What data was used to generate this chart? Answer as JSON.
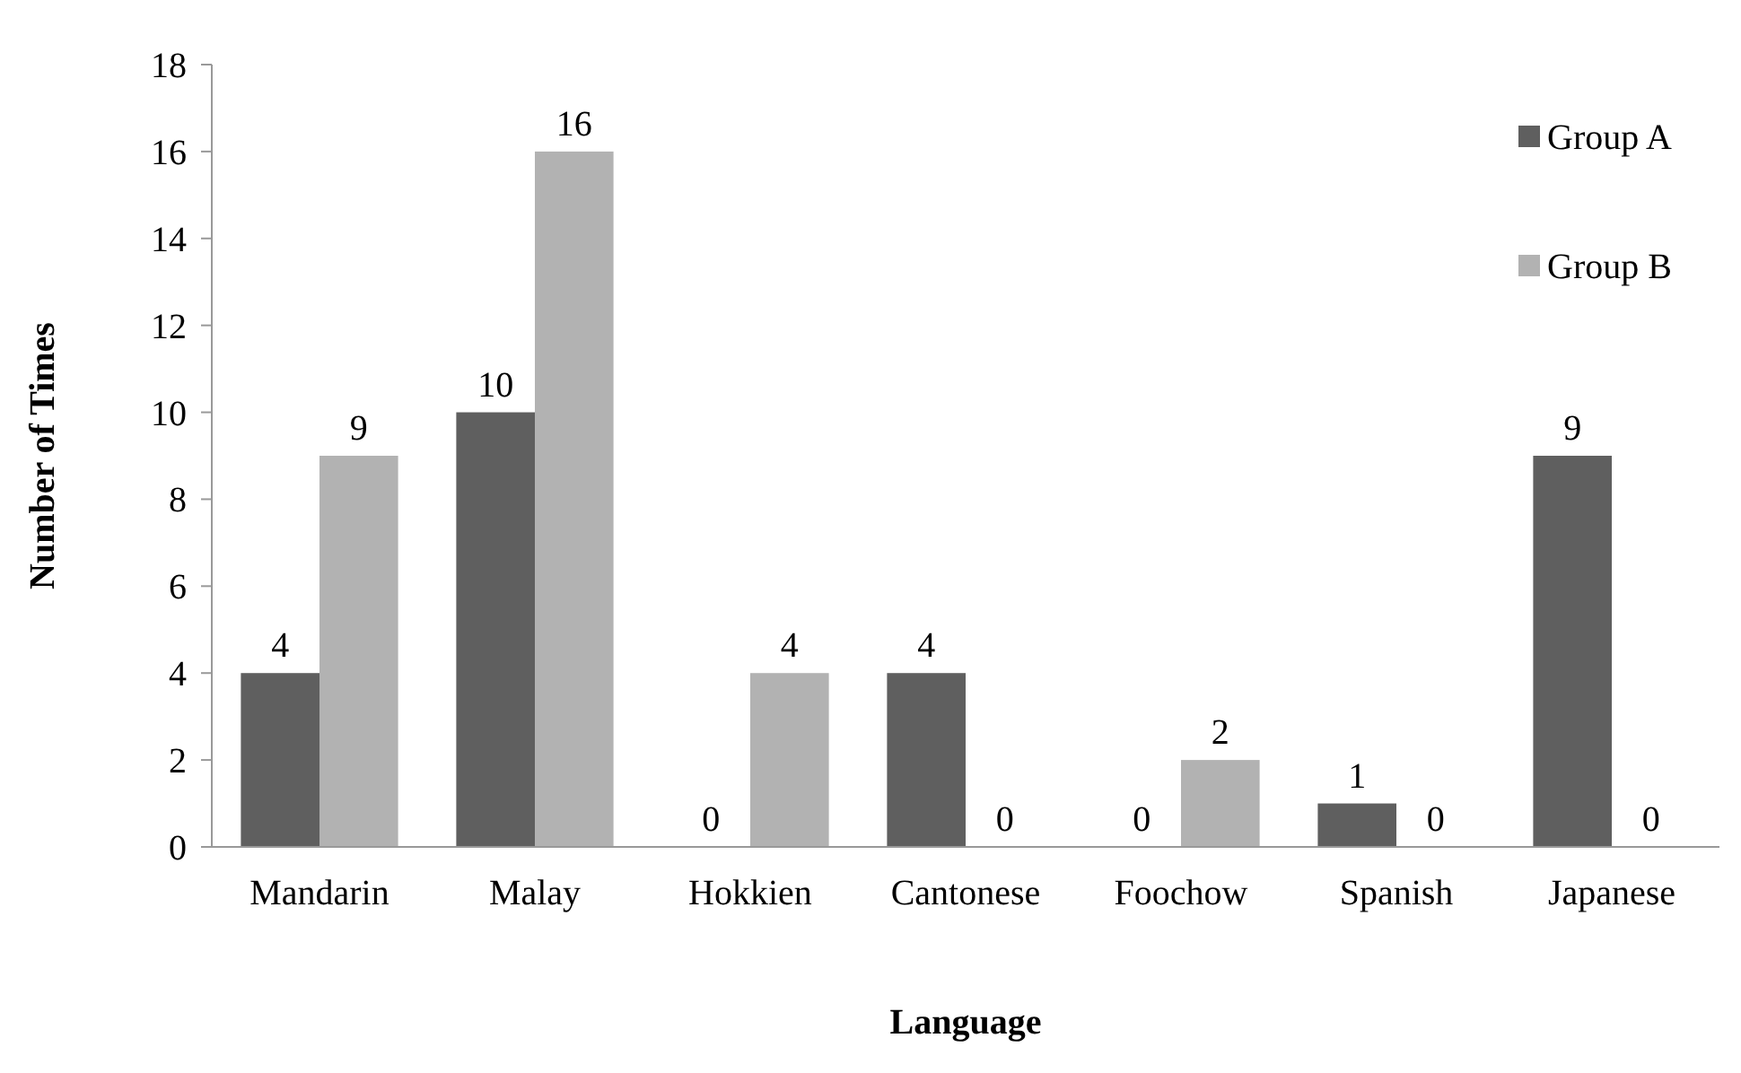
{
  "chart_data": {
    "type": "bar",
    "xlabel": "Language",
    "ylabel": "Number of Times",
    "categories": [
      "Mandarin",
      "Malay",
      "Hokkien",
      "Cantonese",
      "Foochow",
      "Spanish",
      "Japanese"
    ],
    "series": [
      {
        "name": "Group A",
        "color": "#5f5f5f",
        "values": [
          4,
          10,
          0,
          4,
          0,
          1,
          9
        ]
      },
      {
        "name": "Group B",
        "color": "#b2b2b2",
        "values": [
          9,
          16,
          4,
          0,
          2,
          0,
          0
        ]
      }
    ],
    "ylim": [
      0,
      18
    ],
    "yticks": [
      0,
      2,
      4,
      6,
      8,
      10,
      12,
      14,
      16,
      18
    ],
    "grid": false,
    "legend": "top right",
    "data_labels": true
  }
}
